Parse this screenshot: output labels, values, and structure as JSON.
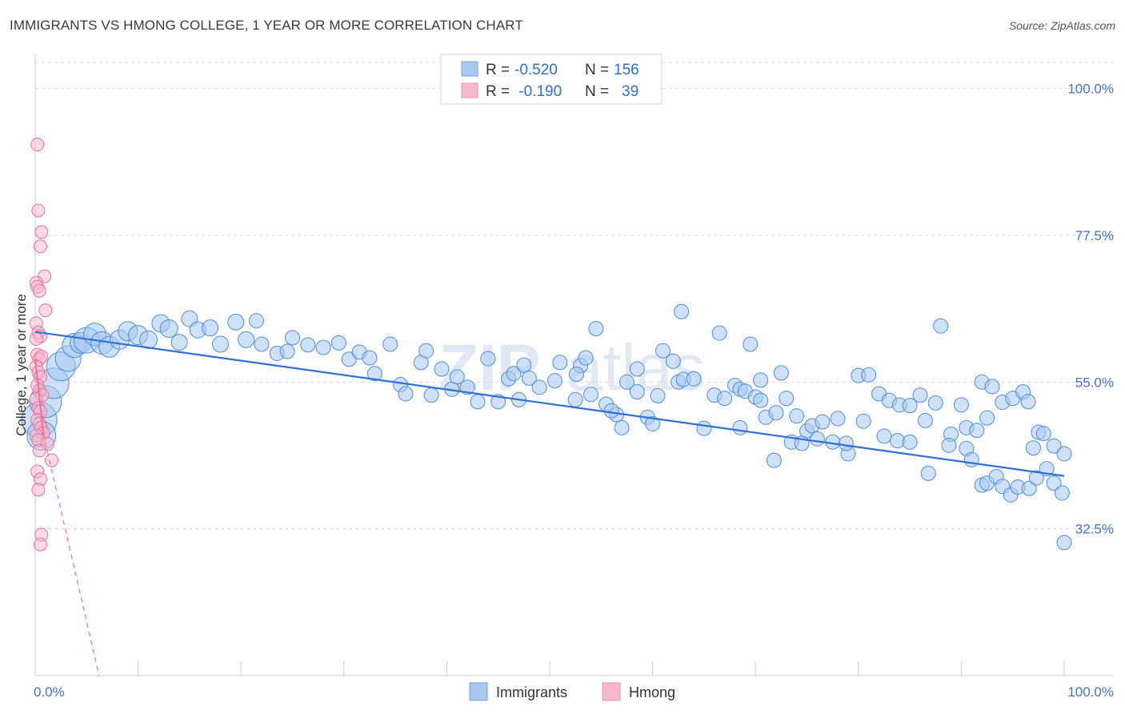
{
  "header": {
    "title": "IMMIGRANTS VS HMONG COLLEGE, 1 YEAR OR MORE CORRELATION CHART",
    "source": "Source: ZipAtlas.com"
  },
  "watermark": {
    "zip": "ZIP",
    "atlas": "atlas"
  },
  "legend": {
    "rows": [
      {
        "r_label": "R =",
        "r_value": "-0.520",
        "n_label": "N =",
        "n_value": "156",
        "color": "#a8c8f0"
      },
      {
        "r_label": "R =",
        "r_value": " -0.190",
        "n_label": "N =",
        "n_value": "39",
        "color": "#f6b8cc"
      }
    ]
  },
  "bottom_legend": {
    "items": [
      "Immigrants",
      "Hmong"
    ]
  },
  "axis": {
    "y_label": "College, 1 year or more",
    "y_ticks": [
      "100.0%",
      "77.5%",
      "55.0%",
      "32.5%"
    ],
    "x_ticks": [
      "0.0%",
      "100.0%"
    ]
  },
  "chart_data": {
    "type": "scatter",
    "xlabel": "",
    "ylabel": "College, 1 year or more",
    "xlim": [
      0,
      100
    ],
    "ylim": [
      10,
      104
    ],
    "y_ticks": [
      32.5,
      55.0,
      77.5,
      100.0
    ],
    "grid": true,
    "legend_position": "top-center",
    "colors": {
      "immigrants": "#4f8ddd",
      "immigrants_fill": "#a8c8f0",
      "hmong": "#ee6f98",
      "hmong_fill": "#f6b8cc",
      "trend_immigrants": "#2f6fd6"
    },
    "series": [
      {
        "name": "Immigrants",
        "R": -0.52,
        "N": 156,
        "trend": {
          "x": [
            0,
            100
          ],
          "y": [
            62.7,
            40.6
          ]
        },
        "points": [
          [
            0.4,
            49.2,
            22
          ],
          [
            0.6,
            46.8,
            18
          ],
          [
            1.0,
            52.0,
            20
          ],
          [
            1.8,
            54.8,
            19
          ],
          [
            2.5,
            57.4,
            18
          ],
          [
            3.2,
            58.6,
            16
          ],
          [
            3.8,
            60.6,
            15
          ],
          [
            4.4,
            61.0,
            13
          ],
          [
            5.0,
            61.4,
            16
          ],
          [
            5.8,
            62.3,
            14
          ],
          [
            6.5,
            61.0,
            14
          ],
          [
            7.2,
            60.4,
            13
          ],
          [
            8.2,
            61.5,
            12
          ],
          [
            9.0,
            62.8,
            12
          ],
          [
            10.0,
            62.2,
            12
          ],
          [
            11.0,
            61.5,
            11
          ],
          [
            12.2,
            64.0,
            11
          ],
          [
            13.0,
            63.2,
            11
          ],
          [
            14.0,
            61.1,
            10
          ],
          [
            15.0,
            64.7,
            10
          ],
          [
            15.8,
            63.0,
            10
          ],
          [
            17.0,
            63.3,
            10
          ],
          [
            18.0,
            60.8,
            10
          ],
          [
            19.5,
            64.2,
            10
          ],
          [
            20.5,
            61.5,
            10
          ],
          [
            21.5,
            64.4,
            9
          ],
          [
            22.0,
            60.8,
            9
          ],
          [
            23.5,
            59.4,
            9
          ],
          [
            24.5,
            59.7,
            9
          ],
          [
            25.0,
            61.8,
            9
          ],
          [
            26.5,
            60.7,
            9
          ],
          [
            28.0,
            60.3,
            9
          ],
          [
            29.5,
            61.0,
            9
          ],
          [
            30.5,
            58.5,
            9
          ],
          [
            31.5,
            59.6,
            9
          ],
          [
            32.5,
            58.7,
            9
          ],
          [
            33.0,
            56.3,
            9
          ],
          [
            34.5,
            60.8,
            9
          ],
          [
            35.5,
            54.6,
            9
          ],
          [
            36.0,
            53.2,
            9
          ],
          [
            37.5,
            58.0,
            9
          ],
          [
            38.0,
            59.8,
            9
          ],
          [
            38.5,
            53.0,
            9
          ],
          [
            39.5,
            57.0,
            9
          ],
          [
            40.5,
            53.9,
            9
          ],
          [
            41.0,
            55.8,
            9
          ],
          [
            42.0,
            54.2,
            9
          ],
          [
            43.0,
            52.0,
            9
          ],
          [
            44.0,
            58.6,
            9
          ],
          [
            45.0,
            52.0,
            9
          ],
          [
            46.0,
            55.5,
            9
          ],
          [
            46.5,
            56.3,
            9
          ],
          [
            47.0,
            52.3,
            9
          ],
          [
            47.5,
            57.6,
            9
          ],
          [
            48.0,
            55.6,
            9
          ],
          [
            49.0,
            54.2,
            9
          ],
          [
            50.5,
            55.2,
            9
          ],
          [
            51.0,
            58.0,
            9
          ],
          [
            52.5,
            52.3,
            9
          ],
          [
            53.0,
            57.5,
            9
          ],
          [
            54.0,
            53.1,
            9
          ],
          [
            55.5,
            51.6,
            9
          ],
          [
            56.5,
            50.0,
            9
          ],
          [
            57.5,
            55.0,
            9
          ],
          [
            58.5,
            53.5,
            9
          ],
          [
            58.5,
            57.0,
            9
          ],
          [
            59.5,
            49.6,
            9
          ],
          [
            60.0,
            48.6,
            9
          ],
          [
            61.0,
            59.8,
            9
          ],
          [
            62.0,
            58.2,
            9
          ],
          [
            62.5,
            55.0,
            9
          ],
          [
            63.0,
            55.4,
            9
          ],
          [
            64.0,
            55.5,
            9
          ],
          [
            65.0,
            47.9,
            9
          ],
          [
            66.0,
            53.0,
            9
          ],
          [
            67.0,
            52.5,
            9
          ],
          [
            68.0,
            54.5,
            9
          ],
          [
            68.5,
            53.9,
            9
          ],
          [
            69.0,
            53.6,
            9
          ],
          [
            70.0,
            52.7,
            9
          ],
          [
            70.5,
            52.2,
            9
          ],
          [
            71.0,
            49.6,
            9
          ],
          [
            72.0,
            50.3,
            9
          ],
          [
            72.5,
            56.4,
            9
          ],
          [
            73.0,
            52.5,
            9
          ],
          [
            74.0,
            49.8,
            9
          ],
          [
            75.0,
            47.5,
            9
          ],
          [
            75.5,
            48.3,
            9
          ],
          [
            76.0,
            46.3,
            9
          ],
          [
            78.0,
            49.4,
            9
          ],
          [
            79.0,
            44.0,
            9
          ],
          [
            80.0,
            56.0,
            9
          ],
          [
            81.0,
            56.1,
            9
          ],
          [
            82.0,
            53.2,
            9
          ],
          [
            83.0,
            52.2,
            9
          ],
          [
            84.0,
            51.5,
            9
          ],
          [
            85.0,
            51.4,
            9
          ],
          [
            86.0,
            53.0,
            9
          ],
          [
            86.5,
            49.1,
            9
          ],
          [
            87.5,
            51.8,
            9
          ],
          [
            88.0,
            63.6,
            9
          ],
          [
            89.0,
            47.0,
            9
          ],
          [
            90.0,
            51.5,
            9
          ],
          [
            90.5,
            48.0,
            9
          ],
          [
            91.5,
            47.6,
            9
          ],
          [
            92.0,
            55.0,
            9
          ],
          [
            92.5,
            49.5,
            9
          ],
          [
            93.0,
            54.3,
            9
          ],
          [
            94.0,
            51.9,
            9
          ],
          [
            95.0,
            52.5,
            9
          ],
          [
            96.0,
            53.5,
            9
          ],
          [
            96.5,
            52.0,
            9
          ],
          [
            97.0,
            44.9,
            9
          ],
          [
            97.5,
            47.3,
            9
          ],
          [
            98.0,
            47.1,
            9
          ],
          [
            99.0,
            45.2,
            9
          ],
          [
            100.0,
            44.0,
            9
          ],
          [
            53.5,
            58.7,
            9
          ],
          [
            52.6,
            56.2,
            9
          ],
          [
            54.5,
            63.2,
            9
          ],
          [
            56.0,
            50.6,
            9
          ],
          [
            57.0,
            48.0,
            9
          ],
          [
            60.5,
            52.9,
            9
          ],
          [
            62.8,
            65.8,
            9
          ],
          [
            66.5,
            62.5,
            9
          ],
          [
            68.5,
            48.0,
            9
          ],
          [
            69.5,
            60.8,
            9
          ],
          [
            70.5,
            55.3,
            9
          ],
          [
            71.8,
            43.0,
            9
          ],
          [
            73.5,
            45.8,
            9
          ],
          [
            74.5,
            45.6,
            9
          ],
          [
            76.5,
            48.9,
            9
          ],
          [
            77.5,
            45.8,
            9
          ],
          [
            78.8,
            45.6,
            9
          ],
          [
            80.5,
            49.0,
            9
          ],
          [
            82.5,
            46.7,
            9
          ],
          [
            83.8,
            46.0,
            9
          ],
          [
            85.0,
            45.8,
            9
          ],
          [
            86.8,
            41.0,
            9
          ],
          [
            88.8,
            45.3,
            9
          ],
          [
            90.5,
            44.8,
            9
          ],
          [
            91.0,
            43.1,
            9
          ],
          [
            92.0,
            39.2,
            9
          ],
          [
            92.5,
            39.5,
            9
          ],
          [
            93.4,
            40.5,
            9
          ],
          [
            94.0,
            39.0,
            9
          ],
          [
            94.8,
            37.7,
            9
          ],
          [
            95.5,
            38.9,
            9
          ],
          [
            96.6,
            38.7,
            9
          ],
          [
            97.3,
            40.3,
            9
          ],
          [
            98.3,
            41.7,
            9
          ],
          [
            99.0,
            39.5,
            9
          ],
          [
            99.8,
            38.0,
            9
          ],
          [
            100.0,
            30.4,
            9
          ]
        ]
      },
      {
        "name": "Hmong",
        "R": -0.19,
        "N": 39,
        "trend_solid": {
          "x": [
            0,
            0.8
          ],
          "y": [
            58.5,
            47.0
          ]
        },
        "trend_dashed": {
          "x": [
            0.8,
            6.2
          ],
          "y": [
            47.0,
            10
          ]
        },
        "points": [
          [
            0.2,
            91.4,
            8
          ],
          [
            0.3,
            81.3,
            8
          ],
          [
            0.6,
            78.0,
            8
          ],
          [
            0.5,
            75.8,
            8
          ],
          [
            0.9,
            71.2,
            8
          ],
          [
            0.1,
            70.2,
            8
          ],
          [
            0.2,
            69.6,
            8
          ],
          [
            0.4,
            69.0,
            8
          ],
          [
            1.0,
            66.0,
            8
          ],
          [
            0.1,
            64.0,
            8
          ],
          [
            0.3,
            62.6,
            8
          ],
          [
            0.5,
            62.0,
            8
          ],
          [
            0.1,
            61.6,
            8
          ],
          [
            0.2,
            59.2,
            8
          ],
          [
            0.4,
            58.5,
            8
          ],
          [
            0.6,
            58.9,
            8
          ],
          [
            0.1,
            57.4,
            8
          ],
          [
            0.3,
            56.5,
            8
          ],
          [
            0.5,
            55.8,
            8
          ],
          [
            0.2,
            54.5,
            8
          ],
          [
            0.4,
            53.7,
            8
          ],
          [
            0.7,
            53.0,
            8
          ],
          [
            0.1,
            52.4,
            8
          ],
          [
            0.3,
            51.0,
            8
          ],
          [
            0.5,
            50.5,
            8
          ],
          [
            0.2,
            49.2,
            8
          ],
          [
            0.4,
            48.6,
            8
          ],
          [
            0.6,
            48.0,
            8
          ],
          [
            0.8,
            47.2,
            8
          ],
          [
            0.1,
            46.8,
            8
          ],
          [
            0.3,
            46.1,
            8
          ],
          [
            1.2,
            45.5,
            8
          ],
          [
            0.4,
            44.5,
            8
          ],
          [
            1.6,
            43.0,
            8
          ],
          [
            0.2,
            41.3,
            8
          ],
          [
            0.5,
            40.1,
            8
          ],
          [
            0.3,
            38.5,
            8
          ],
          [
            0.6,
            31.6,
            8
          ],
          [
            0.5,
            30.1,
            8
          ]
        ]
      }
    ]
  }
}
